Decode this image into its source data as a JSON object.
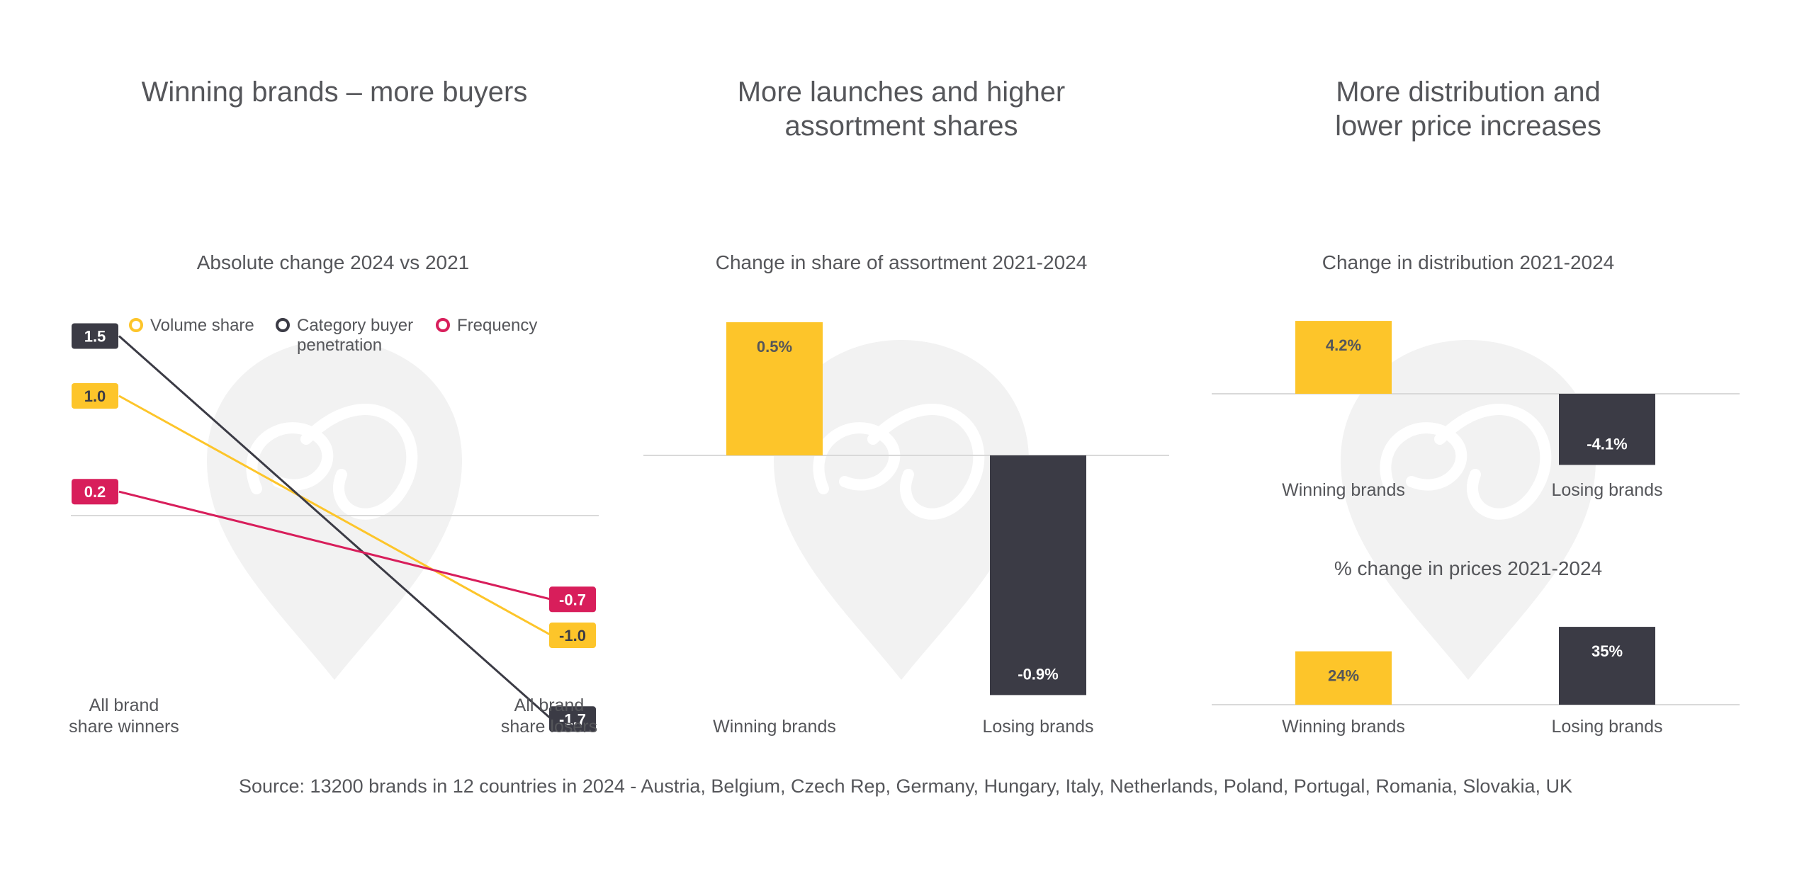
{
  "colors": {
    "yellow": "#fdc52a",
    "dark": "#3b3b45",
    "magenta": "#d81e5b",
    "text": "#55565a",
    "baseline": "#d9d9d9",
    "watermark": "#f2f2f2"
  },
  "headings": {
    "h1": "Winning brands – more buyers",
    "h2_line1": "More launches and higher",
    "h2_line2": "assortment shares",
    "h3_line1": "More distribution and",
    "h3_line2": "lower price increases"
  },
  "source": "Source: 13200 brands in 12 countries in 2024 - Austria, Belgium, Czech Rep, Germany, Hungary, Italy, Netherlands, Poland, Portugal, Romania, Slovakia, UK",
  "chart_data": [
    {
      "type": "line",
      "title": "Absolute change 2024 vs 2021",
      "x": [
        "All brand share winners",
        "All brand share losers"
      ],
      "x_labels": [
        [
          "All brand",
          "share winners"
        ],
        [
          "All brand",
          "share losers"
        ]
      ],
      "ylim": [
        -2,
        2
      ],
      "legend": [
        "Volume share",
        [
          "Category buyer",
          "penetration"
        ],
        "Frequency"
      ],
      "series": [
        {
          "name": "Volume share",
          "color": "#fdc52a",
          "values": [
            1.0,
            -1.0
          ],
          "labels": [
            "1.0",
            "-1.0"
          ],
          "label_color": "#3b3b45"
        },
        {
          "name": "Category buyer penetration",
          "color": "#3b3b45",
          "values": [
            1.5,
            -1.7
          ],
          "labels": [
            "1.5",
            "-1.7"
          ],
          "label_color": "#ffffff"
        },
        {
          "name": "Frequency",
          "color": "#d81e5b",
          "values": [
            0.2,
            -0.7
          ],
          "labels": [
            "0.2",
            "-0.7"
          ],
          "label_color": "#ffffff"
        }
      ]
    },
    {
      "type": "bar",
      "title": "Change in share of assortment 2021-2024",
      "categories": [
        "Winning brands",
        "Losing brands"
      ],
      "values": [
        0.5,
        -0.9
      ],
      "labels": [
        "0.5%",
        "-0.9%"
      ],
      "colors": [
        "#fdc52a",
        "#3b3b45"
      ],
      "label_colors": [
        "#55565a",
        "#ffffff"
      ],
      "ylim": [
        -0.9,
        0.5
      ]
    },
    {
      "type": "bar",
      "title": "Change in distribution 2021-2024",
      "categories": [
        "Winning brands",
        "Losing brands"
      ],
      "values": [
        4.2,
        -4.1
      ],
      "labels": [
        "4.2%",
        "-4.1%"
      ],
      "colors": [
        "#fdc52a",
        "#3b3b45"
      ],
      "label_colors": [
        "#55565a",
        "#ffffff"
      ],
      "ylim": [
        -4.2,
        4.2
      ]
    },
    {
      "type": "bar",
      "title": "% change in prices 2021-2024",
      "categories": [
        "Winning brands",
        "Losing brands"
      ],
      "values": [
        24,
        35
      ],
      "labels": [
        "24%",
        "35%"
      ],
      "colors": [
        "#fdc52a",
        "#3b3b45"
      ],
      "label_colors": [
        "#55565a",
        "#ffffff"
      ],
      "ylim": [
        0,
        35
      ]
    }
  ]
}
